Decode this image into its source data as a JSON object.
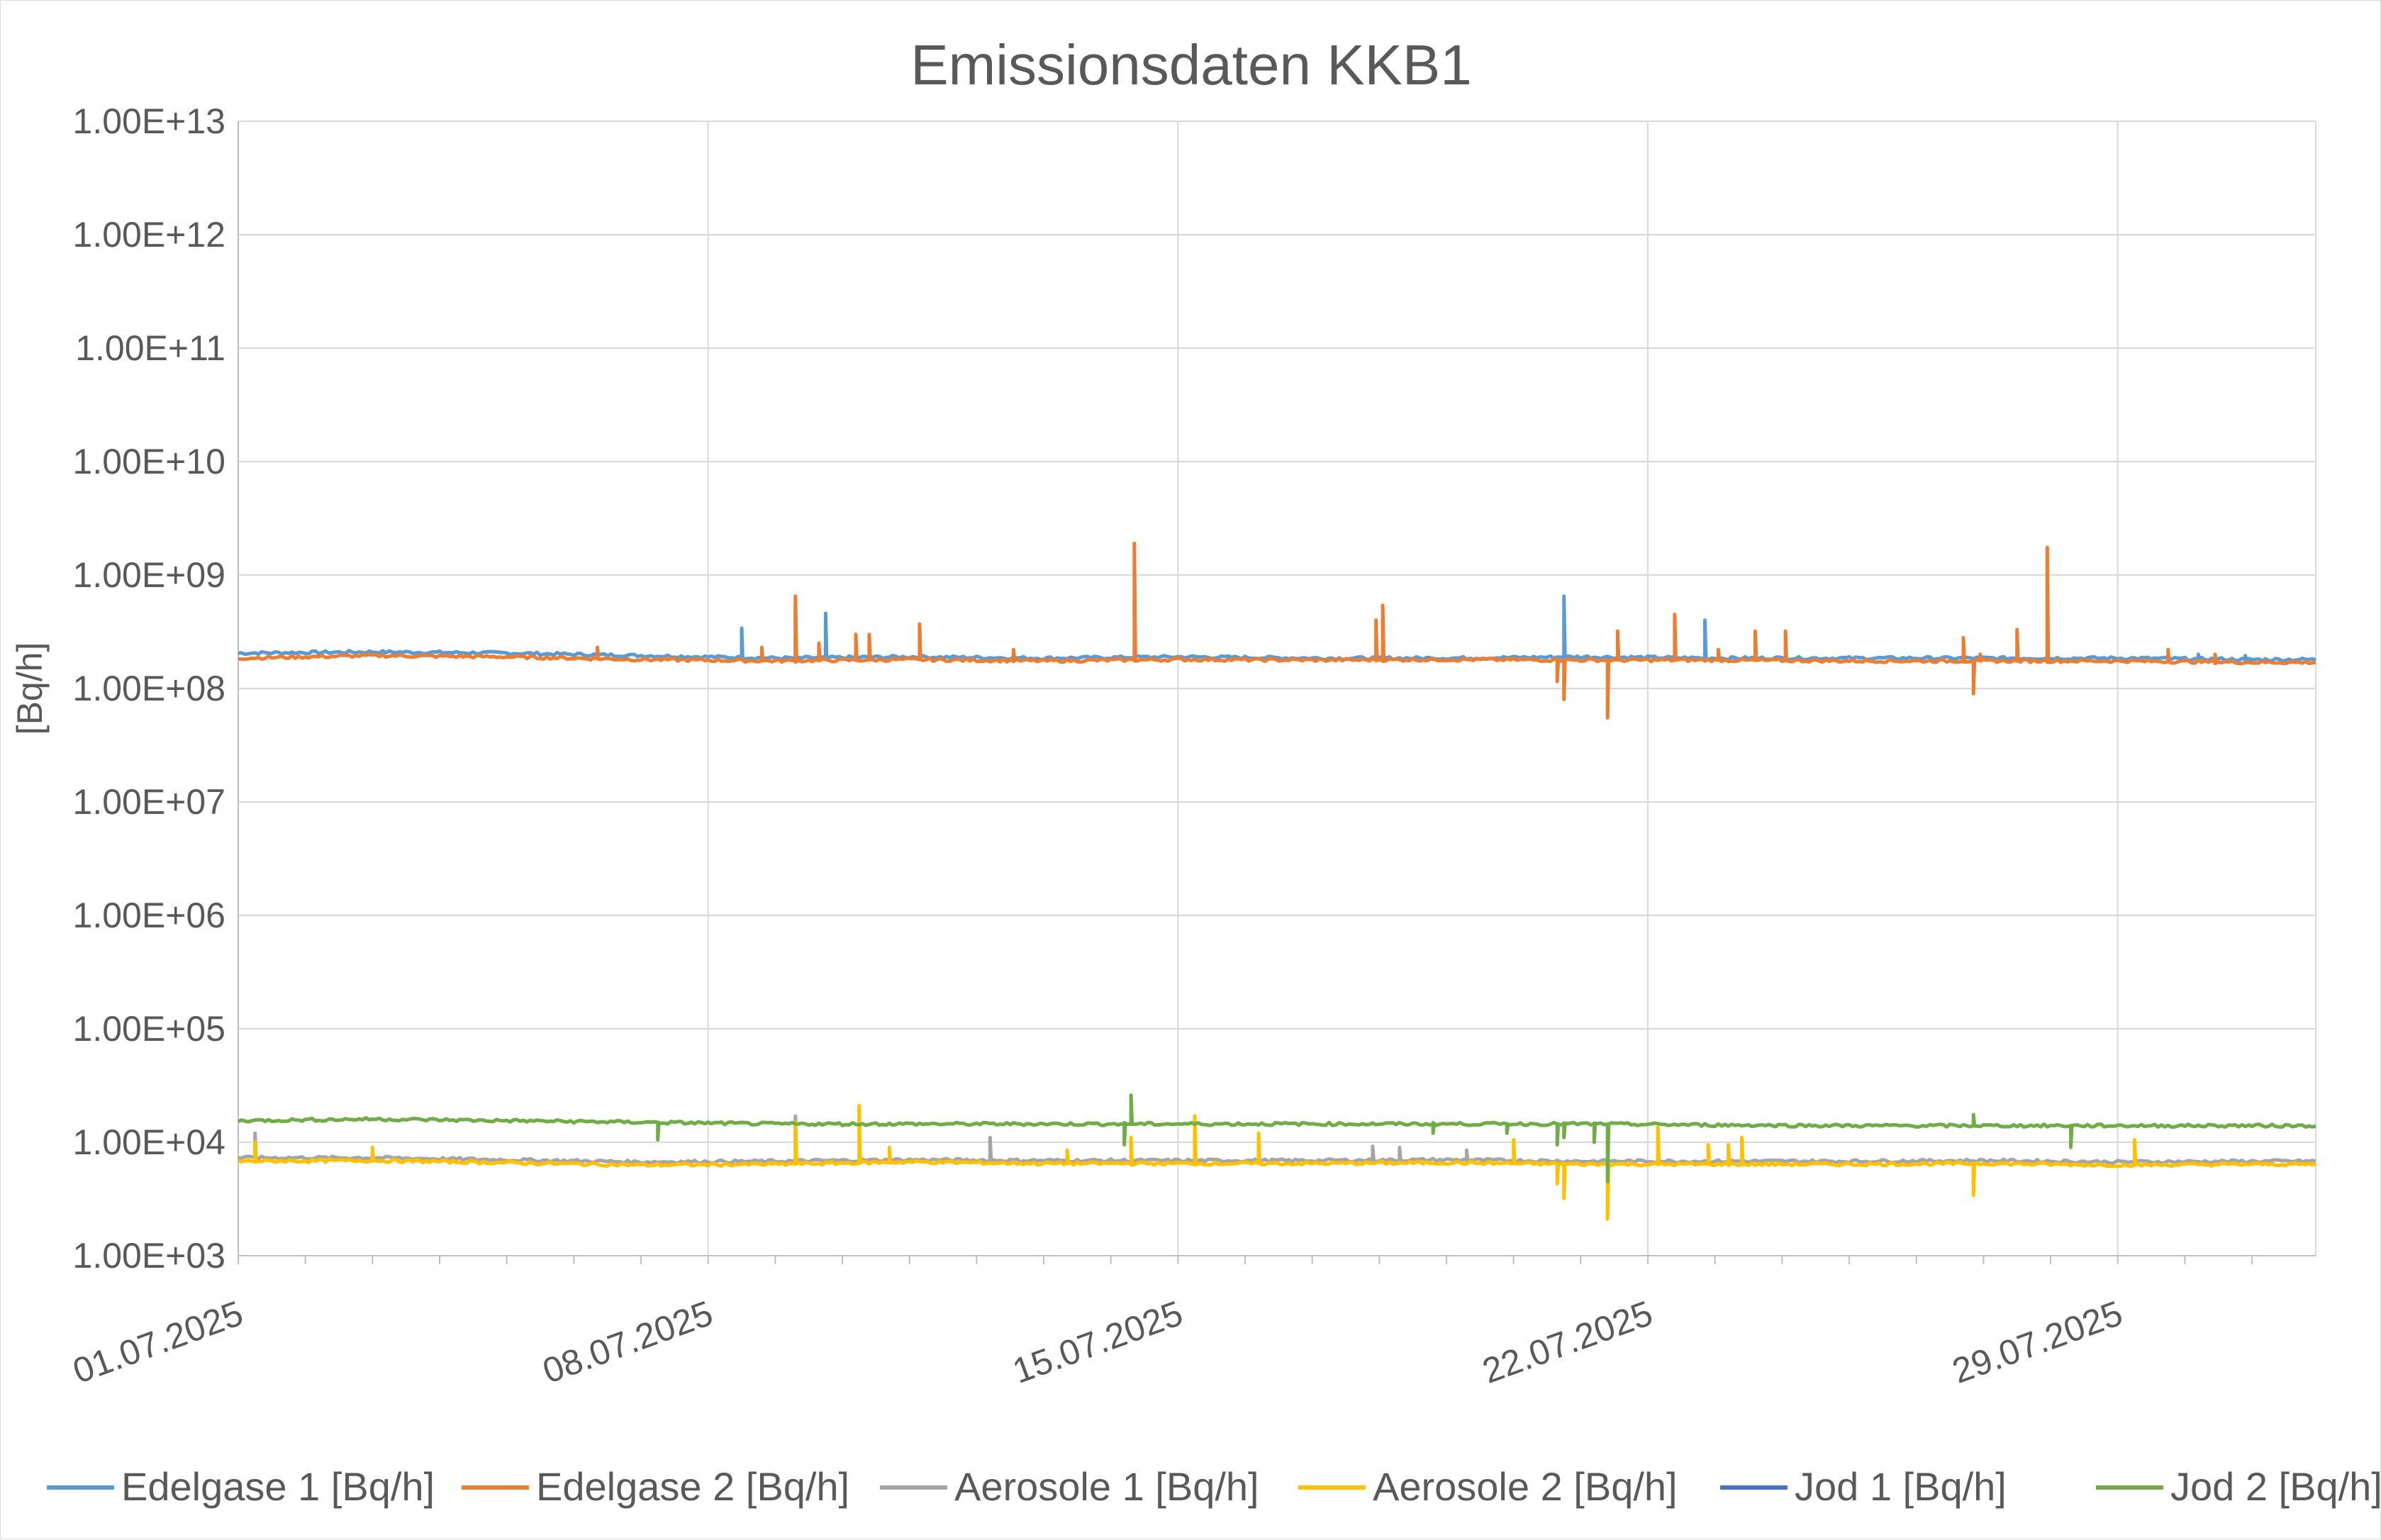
{
  "chart_data": {
    "type": "line",
    "title": "Emissionsdaten KKB1",
    "xlabel": "",
    "ylabel": "[Bq/h]",
    "y_scale": "log",
    "ylim": [
      1000,
      10000000000000
    ],
    "y_ticks": [
      "1.00E+03",
      "1.00E+04",
      "1.00E+05",
      "1.00E+06",
      "1.00E+07",
      "1.00E+08",
      "1.00E+09",
      "1.00E+10",
      "1.00E+11",
      "1.00E+12",
      "1.00E+13"
    ],
    "x_range": [
      "01.07.2025",
      "31.07.2025"
    ],
    "x_ticks": [
      "01.07.2025",
      "08.07.2025",
      "15.07.2025",
      "22.07.2025",
      "29.07.2025"
    ],
    "grid": true,
    "legend_position": "bottom",
    "series": [
      {
        "name": "Edelgase 1 [Bq/h]",
        "color": "#5B9BD5",
        "baseline": [
          [
            0,
            205000000.0
          ],
          [
            2,
            210000000.0
          ],
          [
            4,
            205000000.0
          ],
          [
            6,
            195000000.0
          ],
          [
            8,
            185000000.0
          ],
          [
            10,
            190000000.0
          ],
          [
            12,
            185000000.0
          ],
          [
            14,
            190000000.0
          ],
          [
            16,
            185000000.0
          ],
          [
            18,
            185000000.0
          ],
          [
            20,
            190000000.0
          ],
          [
            22,
            185000000.0
          ],
          [
            24,
            185000000.0
          ],
          [
            26,
            185000000.0
          ],
          [
            28,
            185000000.0
          ],
          [
            30,
            180000000.0
          ]
        ],
        "spikes": [
          [
            7.5,
            340000000.0
          ],
          [
            8.3,
            550000000.0
          ],
          [
            8.75,
            460000000.0
          ],
          [
            19.75,
            650000000.0
          ],
          [
            21.85,
            400000000.0
          ],
          [
            29.2,
            200000000.0
          ],
          [
            29.9,
            195000000.0
          ]
        ]
      },
      {
        "name": "Edelgase 2 [Bq/h]",
        "color": "#ED7D31",
        "baseline": [
          [
            0,
            185000000.0
          ],
          [
            2,
            195000000.0
          ],
          [
            4,
            190000000.0
          ],
          [
            6,
            180000000.0
          ],
          [
            8,
            175000000.0
          ],
          [
            10,
            180000000.0
          ],
          [
            12,
            175000000.0
          ],
          [
            14,
            180000000.0
          ],
          [
            16,
            178000000.0
          ],
          [
            18,
            180000000.0
          ],
          [
            20,
            178000000.0
          ],
          [
            22,
            178000000.0
          ],
          [
            24,
            175000000.0
          ],
          [
            26,
            175000000.0
          ],
          [
            28,
            175000000.0
          ],
          [
            30,
            170000000.0
          ]
        ],
        "spikes": [
          [
            5.35,
            230000000.0
          ],
          [
            7.8,
            230000000.0
          ],
          [
            8.3,
            650000000.0
          ],
          [
            8.65,
            250000000.0
          ],
          [
            9.2,
            300000000.0
          ],
          [
            9.4,
            300000000.0
          ],
          [
            10.15,
            370000000.0
          ],
          [
            11.55,
            220000000.0
          ],
          [
            13.35,
            1900000000.0
          ],
          [
            16.95,
            400000000.0
          ],
          [
            17.05,
            540000000.0
          ],
          [
            19.65,
            115000000.0
          ],
          [
            19.75,
            80000000.0
          ],
          [
            20.4,
            55000000.0
          ],
          [
            20.55,
            320000000.0
          ],
          [
            21.4,
            450000000.0
          ],
          [
            22.05,
            220000000.0
          ],
          [
            22.6,
            320000000.0
          ],
          [
            23.05,
            320000000.0
          ],
          [
            25.7,
            280000000.0
          ],
          [
            25.85,
            90000000.0
          ],
          [
            25.95,
            200000000.0
          ],
          [
            26.5,
            330000000.0
          ],
          [
            26.95,
            1750000000.0
          ],
          [
            28.75,
            220000000.0
          ],
          [
            29.45,
            200000000.0
          ]
        ]
      },
      {
        "name": "Aerosole 1 [Bq/h]",
        "color": "#A5A5A5",
        "baseline": [
          [
            0,
            7300.0
          ],
          [
            2,
            7300.0
          ],
          [
            4,
            7000.0
          ],
          [
            6,
            6700.0
          ],
          [
            8,
            6800.0
          ],
          [
            10,
            7000.0
          ],
          [
            12,
            6900.0
          ],
          [
            14,
            6900.0
          ],
          [
            16,
            6900.0
          ],
          [
            18,
            7000.0
          ],
          [
            20,
            6800.0
          ],
          [
            22,
            6800.0
          ],
          [
            24,
            6800.0
          ],
          [
            26,
            6900.0
          ],
          [
            28,
            6700.0
          ],
          [
            30,
            6800.0
          ]
        ],
        "spikes": [
          [
            0.25,
            12000.0
          ],
          [
            8.3,
            17000.0
          ],
          [
            11.2,
            11000.0
          ],
          [
            16.9,
            9200.0
          ],
          [
            17.3,
            9000.0
          ],
          [
            18.3,
            8500.0
          ]
        ]
      },
      {
        "name": "Aerosole 2 [Bq/h]",
        "color": "#FFC000",
        "baseline": [
          [
            0,
            6800.0
          ],
          [
            2,
            6900.0
          ],
          [
            4,
            6600.0
          ],
          [
            6,
            6300.0
          ],
          [
            8,
            6400.0
          ],
          [
            10,
            6700.0
          ],
          [
            12,
            6500.0
          ],
          [
            14,
            6500.0
          ],
          [
            16,
            6500.0
          ],
          [
            18,
            6600.0
          ],
          [
            20,
            6400.0
          ],
          [
            22,
            6400.0
          ],
          [
            24,
            6400.0
          ],
          [
            26,
            6500.0
          ],
          [
            28,
            6300.0
          ],
          [
            30,
            6400.0
          ]
        ],
        "spikes": [
          [
            0.25,
            10000.0
          ],
          [
            2.0,
            9000.0
          ],
          [
            8.3,
            15000.0
          ],
          [
            9.25,
            21000.0
          ],
          [
            9.7,
            9000.0
          ],
          [
            12.35,
            8500.0
          ],
          [
            13.3,
            11000.0
          ],
          [
            14.25,
            17000.0
          ],
          [
            15.2,
            12000.0
          ],
          [
            19.0,
            10500.0
          ],
          [
            19.65,
            4300.0
          ],
          [
            19.75,
            3200.0
          ],
          [
            20.4,
            2100.0
          ],
          [
            21.15,
            13500.0
          ],
          [
            21.9,
            9500.0
          ],
          [
            22.2,
            9500.0
          ],
          [
            22.4,
            11000.0
          ],
          [
            25.85,
            3400.0
          ],
          [
            28.25,
            10500.0
          ]
        ]
      },
      {
        "name": "Jod 1 [Bq/h]",
        "color": "#4472C4",
        "baseline": [],
        "spikes": []
      },
      {
        "name": "Jod 2 [Bq/h]",
        "color": "#70AD47",
        "baseline": [
          [
            0,
            15500.0
          ],
          [
            2,
            16000.0
          ],
          [
            4,
            15500.0
          ],
          [
            6,
            15000.0
          ],
          [
            8,
            14500.0
          ],
          [
            10,
            14500.0
          ],
          [
            12,
            14500.0
          ],
          [
            14,
            14500.0
          ],
          [
            16,
            14500.0
          ],
          [
            18,
            14500.0
          ],
          [
            20,
            14500.0
          ],
          [
            22,
            14200.0
          ],
          [
            24,
            14000.0
          ],
          [
            26,
            14000.0
          ],
          [
            28,
            14000.0
          ],
          [
            30,
            14000.0
          ]
        ],
        "spikes": [
          [
            6.25,
            10500.0
          ],
          [
            13.3,
            26000.0
          ],
          [
            13.2,
            9500.0
          ],
          [
            17.8,
            12000.0
          ],
          [
            18.9,
            12000.0
          ],
          [
            19.65,
            9500.0
          ],
          [
            19.75,
            11000.0
          ],
          [
            20.2,
            10000.0
          ],
          [
            20.4,
            4500.0
          ],
          [
            25.85,
            17500.0
          ],
          [
            27.3,
            9000.0
          ]
        ]
      }
    ]
  }
}
